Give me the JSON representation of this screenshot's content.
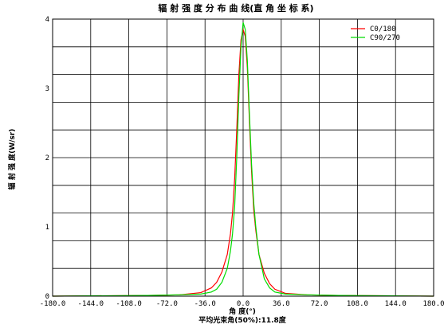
{
  "chart_data": {
    "type": "line",
    "title": "辐 射 强 度 分 布 曲 线(直 角 坐 标 系)",
    "xlabel": "角 度(°)",
    "ylabel": "辐 射 强 度(W/sr)",
    "footnote": "平均光束角(50%):11.8度",
    "xlim": [
      -180,
      180
    ],
    "ylim": [
      0,
      4
    ],
    "xticks": [
      "-180.0",
      "-144.0",
      "-108.0",
      "-72.0",
      "-36.0",
      "0.0",
      "36.0",
      "72.0",
      "108.0",
      "144.0",
      "180.0"
    ],
    "yticks": [
      "0",
      "1",
      "2",
      "3",
      "4"
    ],
    "grid": true,
    "legend_position": "top-right",
    "series": [
      {
        "name": "C0/180",
        "color": "#ff0000",
        "x": [
          -180,
          -90,
          -60,
          -40,
          -30,
          -25,
          -20,
          -15,
          -12,
          -10,
          -8,
          -6,
          -4,
          -2,
          0,
          2,
          4,
          6,
          8,
          10,
          12,
          15,
          20,
          25,
          30,
          40,
          60,
          90,
          180
        ],
        "y": [
          0,
          0.01,
          0.02,
          0.05,
          0.12,
          0.2,
          0.35,
          0.6,
          0.9,
          1.2,
          1.7,
          2.4,
          3.2,
          3.7,
          3.85,
          3.75,
          3.3,
          2.5,
          1.8,
          1.25,
          0.95,
          0.6,
          0.33,
          0.18,
          0.1,
          0.04,
          0.02,
          0.01,
          0
        ]
      },
      {
        "name": "C90/270",
        "color": "#00dd00",
        "x": [
          -180,
          -90,
          -60,
          -40,
          -30,
          -25,
          -20,
          -15,
          -12,
          -10,
          -8,
          -6,
          -4,
          -2,
          0,
          2,
          4,
          6,
          8,
          10,
          12,
          15,
          20,
          25,
          30,
          40,
          60,
          90,
          180
        ],
        "y": [
          0,
          0.01,
          0.02,
          0.03,
          0.06,
          0.1,
          0.2,
          0.4,
          0.65,
          0.9,
          1.3,
          2.0,
          2.9,
          3.6,
          3.95,
          3.85,
          3.4,
          2.6,
          1.9,
          1.35,
          1.0,
          0.6,
          0.25,
          0.12,
          0.06,
          0.03,
          0.02,
          0.01,
          0
        ]
      }
    ]
  }
}
